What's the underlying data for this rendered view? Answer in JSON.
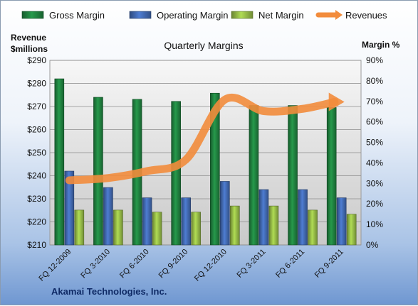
{
  "chart_data": {
    "type": "bar",
    "title": "Quarterly Margins",
    "footer": "Akamai Technologies, Inc.",
    "categories": [
      "FQ 12-2009",
      "FQ 3-2010",
      "FQ 6-2010",
      "FQ 9-2010",
      "FQ 12-2010",
      "FQ 3-2011",
      "FQ 6-2011",
      "FQ 9-2011"
    ],
    "y_left": {
      "label_line1": "Revenue",
      "label_line2": "$millions",
      "range": [
        210,
        290
      ],
      "ticks": [
        "$210",
        "$220",
        "$230",
        "$240",
        "$250",
        "$260",
        "$270",
        "$280",
        "$290"
      ]
    },
    "y_right": {
      "label": "Margin %",
      "range": [
        0,
        90
      ],
      "ticks": [
        "0%",
        "10%",
        "20%",
        "30%",
        "40%",
        "50%",
        "60%",
        "70%",
        "80%",
        "90%"
      ]
    },
    "grid": true,
    "legend_position": "top",
    "series": [
      {
        "name": "Gross Margin",
        "axis": "right",
        "kind": "bar",
        "color": "#1e7a3c",
        "values": [
          81,
          72,
          71,
          70,
          74,
          68,
          68,
          67
        ]
      },
      {
        "name": "Operating Margin",
        "axis": "right",
        "kind": "bar",
        "color": "#3e64a8",
        "values": [
          36,
          28,
          23,
          23,
          31,
          27,
          27,
          23
        ]
      },
      {
        "name": "Net Margin",
        "axis": "right",
        "kind": "bar",
        "color": "#8db043",
        "values": [
          17,
          17,
          16,
          16,
          19,
          19,
          17,
          15
        ]
      },
      {
        "name": "Revenues",
        "axis": "left",
        "kind": "line",
        "color": "#f28c3c",
        "values": [
          238,
          239,
          242,
          247,
          273,
          268,
          269,
          272
        ]
      }
    ]
  }
}
